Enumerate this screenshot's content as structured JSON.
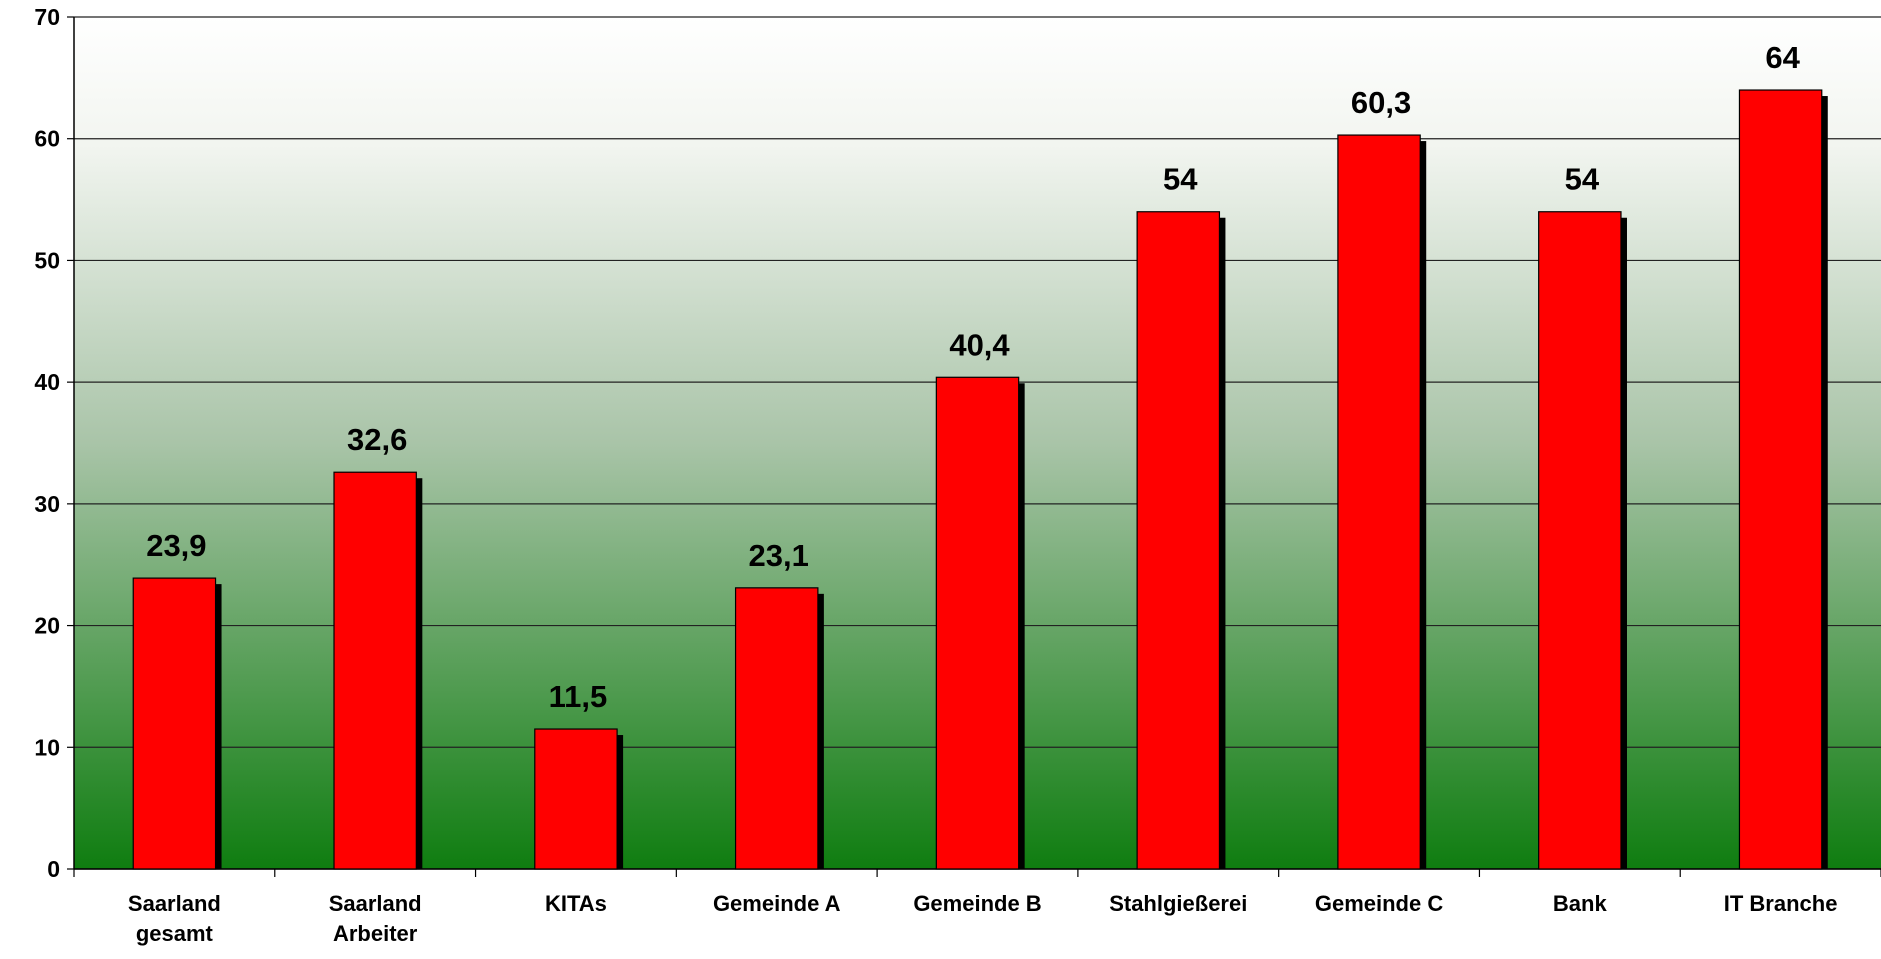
{
  "chart_data": {
    "type": "bar",
    "categories": [
      "Saarland gesamt",
      "Saarland Arbeiter",
      "KITAs",
      "Gemeinde A",
      "Gemeinde B",
      "Stahlgießerei",
      "Gemeinde C",
      "Bank",
      "IT Branche"
    ],
    "values": [
      23.9,
      32.6,
      11.5,
      23.1,
      40.4,
      54,
      60.3,
      54,
      64
    ],
    "value_labels": [
      "23,9",
      "32,6",
      "11,5",
      "23,1",
      "40,4",
      "54",
      "60,3",
      "54",
      "64"
    ],
    "color": "#ff0000",
    "ylim": [
      0,
      70
    ],
    "yticks": [
      0,
      10,
      20,
      30,
      40,
      50,
      60,
      70
    ],
    "grid": true
  }
}
